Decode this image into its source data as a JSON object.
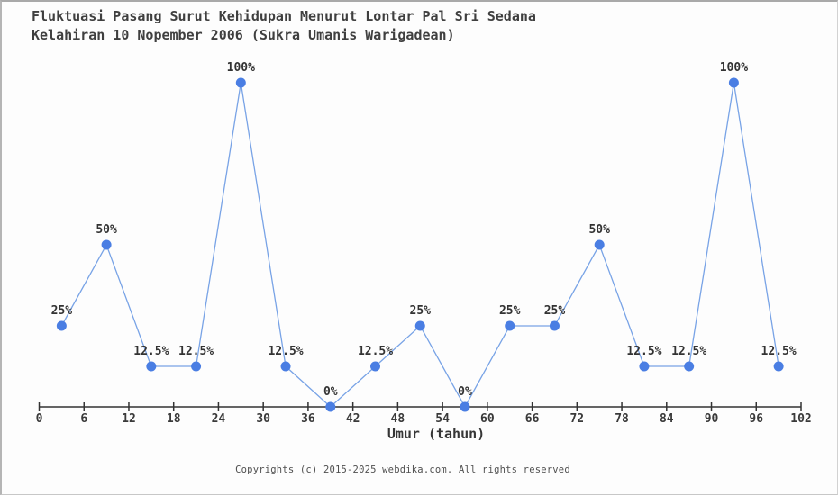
{
  "chart_data": {
    "type": "line",
    "title_line1": "Fluktuasi Pasang Surut Kehidupan Menurut Lontar Pal Sri Sedana",
    "title_line2": "Kelahiran 10 Nopember 2006 (Sukra Umanis Warigadean)",
    "xlabel": "Umur (tahun)",
    "x": [
      3,
      9,
      15,
      21,
      27,
      33,
      39,
      45,
      51,
      57,
      63,
      69,
      75,
      81,
      87,
      93,
      99
    ],
    "values": [
      25,
      50,
      12.5,
      12.5,
      100,
      12.5,
      0,
      12.5,
      25,
      0,
      25,
      25,
      50,
      12.5,
      12.5,
      100,
      12.5
    ],
    "point_labels": [
      "25%",
      "50%",
      "12.5%",
      "12.5%",
      "100%",
      "12.5%",
      "0%",
      "12.5%",
      "25%",
      "0%",
      "25%",
      "25%",
      "50%",
      "12.5%",
      "12.5%",
      "100%",
      "12.5%"
    ],
    "x_ticks": [
      0,
      6,
      12,
      18,
      24,
      30,
      36,
      42,
      48,
      54,
      60,
      66,
      72,
      78,
      84,
      90,
      96,
      102
    ],
    "xlim": [
      0,
      102
    ],
    "ylim": [
      0,
      100
    ],
    "grid": false,
    "legend": null,
    "line_color": "#78a3e6",
    "marker_color": "#4a7ee3",
    "axis_color": "#333333",
    "label_color": "#333333",
    "title_color": "#3f3f3f"
  },
  "footer": {
    "copyright": "Copyrights (c) 2015-2025 webdika.com. All rights reserved"
  }
}
